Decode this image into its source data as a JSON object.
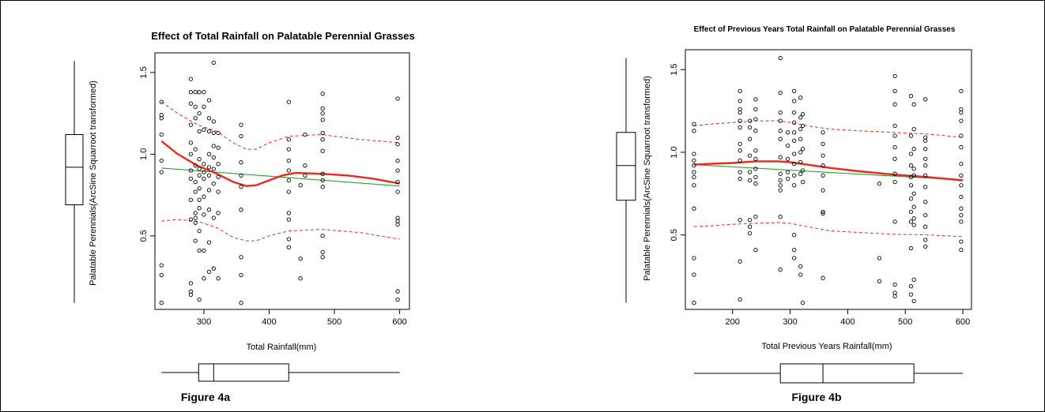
{
  "chart_data": [
    {
      "type": "scatter",
      "title": "Effect of Total Rainfall on Palatable Perennial Grasses",
      "xlabel": "Total Rainfall(mm)",
      "ylabel": "Palatable Perennials(ArcSine Squarroot transformed)",
      "caption": "Figure 4a",
      "xlim": [
        225,
        615
      ],
      "ylim": [
        0.05,
        1.62
      ],
      "xticks": [
        300,
        400,
        500,
        600
      ],
      "yticks": [
        0.5,
        1.0,
        1.5
      ],
      "grid": false,
      "points": [
        {
          "x": 235,
          "y": [
            0.09,
            0.26,
            0.32,
            0.89,
            0.96,
            1.12,
            1.22,
            1.24,
            1.32
          ]
        },
        {
          "x": 280,
          "y": [
            0.14,
            0.16,
            0.21,
            0.6,
            0.72,
            0.85,
            0.9,
            1.0,
            1.07,
            1.18,
            1.31,
            1.38,
            1.46
          ]
        },
        {
          "x": 287,
          "y": [
            0.47,
            0.58,
            0.61,
            0.64,
            0.77,
            0.83,
            0.93,
            1.03,
            1.22,
            1.29,
            1.38
          ]
        },
        {
          "x": 293,
          "y": [
            0.11,
            0.41,
            0.53,
            0.67,
            0.72,
            0.79,
            0.87,
            0.91,
            0.97,
            1.14,
            1.25,
            1.38
          ]
        },
        {
          "x": 300,
          "y": [
            0.24,
            0.41,
            0.63,
            0.74,
            0.85,
            0.89,
            0.94,
            1.15,
            1.29,
            1.38
          ]
        },
        {
          "x": 308,
          "y": [
            0.28,
            0.46,
            0.66,
            0.78,
            0.87,
            0.92,
            1.0,
            1.14,
            1.22,
            1.33
          ]
        },
        {
          "x": 315,
          "y": [
            0.3,
            0.61,
            0.82,
            0.91,
            0.98,
            1.05,
            1.13,
            1.2,
            1.56
          ]
        },
        {
          "x": 322,
          "y": [
            0.24,
            0.64,
            0.77,
            0.86,
            0.94,
            1.04,
            1.13
          ]
        },
        {
          "x": 357,
          "y": [
            0.09,
            0.26,
            0.37,
            0.66,
            0.8,
            0.87,
            0.95,
            1.11,
            1.18
          ]
        },
        {
          "x": 430,
          "y": [
            0.43,
            0.48,
            0.6,
            0.64,
            0.77,
            0.84,
            0.9,
            0.96,
            1.03,
            1.09,
            1.32
          ]
        },
        {
          "x": 448,
          "y": [
            0.24,
            0.36,
            0.81
          ]
        },
        {
          "x": 455,
          "y": [
            0.87,
            0.93,
            1.12
          ]
        },
        {
          "x": 482,
          "y": [
            0.37,
            0.4,
            0.5,
            0.8,
            0.84,
            0.88,
            1.02,
            1.09,
            1.13,
            1.21,
            1.25,
            1.28,
            1.37
          ]
        },
        {
          "x": 597,
          "y": [
            0.11,
            0.16,
            0.57,
            0.59,
            0.61,
            0.77,
            0.83,
            0.9,
            0.96,
            1.06,
            1.1,
            1.34
          ]
        }
      ],
      "lines": [
        {
          "role": "linear-fit",
          "color": "#2ca02c",
          "style": "solid",
          "x": [
            235,
            600
          ],
          "y": [
            0.915,
            0.805
          ]
        },
        {
          "role": "smooth",
          "color": "#e8291c",
          "style": "solid",
          "x": [
            235,
            260,
            290,
            320,
            345,
            365,
            380,
            400,
            420,
            440,
            480,
            520,
            560,
            600
          ],
          "y": [
            1.08,
            1.0,
            0.93,
            0.88,
            0.83,
            0.805,
            0.81,
            0.84,
            0.87,
            0.885,
            0.88,
            0.87,
            0.85,
            0.82
          ]
        },
        {
          "role": "upper-band",
          "color": "#e8291c",
          "style": "dashed",
          "x": [
            235,
            260,
            290,
            320,
            345,
            365,
            380,
            400,
            430,
            480,
            540,
            600
          ],
          "y": [
            1.32,
            1.25,
            1.18,
            1.14,
            1.07,
            1.03,
            1.03,
            1.07,
            1.11,
            1.12,
            1.09,
            1.07
          ]
        },
        {
          "role": "lower-band",
          "color": "#e8291c",
          "style": "dashed",
          "x": [
            235,
            260,
            290,
            320,
            345,
            365,
            380,
            400,
            430,
            480,
            540,
            600
          ],
          "y": [
            0.59,
            0.6,
            0.59,
            0.55,
            0.49,
            0.47,
            0.47,
            0.5,
            0.53,
            0.54,
            0.52,
            0.48
          ]
        }
      ],
      "x_boxplot": {
        "min": 235,
        "q1": 292,
        "median": 315,
        "q3": 430,
        "max": 600
      },
      "y_boxplot": {
        "min": 0.09,
        "q1": 0.69,
        "median": 0.92,
        "q3": 1.12,
        "max": 1.57
      }
    },
    {
      "type": "scatter",
      "title": "Effect of Previous Years Total Rainfall on Palatable Perennial Grasses",
      "xlabel": "Total Previous Years Rainfall(mm)",
      "ylabel": "Palatable Perennials(ArcSine Squarroot transformed)",
      "caption": "Figure 4b",
      "xlim": [
        118,
        615
      ],
      "ylim": [
        0.05,
        1.62
      ],
      "xticks": [
        200,
        300,
        400,
        500,
        600
      ],
      "yticks": [
        0.5,
        1.0,
        1.5
      ],
      "grid": false,
      "points": [
        {
          "x": 133,
          "y": [
            0.09,
            0.26,
            0.36,
            0.66,
            0.8,
            0.85,
            0.88,
            0.92,
            0.95,
            0.99,
            1.13,
            1.17
          ]
        },
        {
          "x": 213,
          "y": [
            0.11,
            0.34,
            0.59,
            0.84,
            0.88,
            0.95,
            1.01,
            1.05,
            1.15,
            1.19,
            1.24,
            1.26,
            1.31,
            1.37
          ]
        },
        {
          "x": 230,
          "y": [
            0.51,
            0.55,
            0.59,
            0.83,
            0.88,
            0.98,
            1.08,
            1.15,
            1.19
          ]
        },
        {
          "x": 240,
          "y": [
            0.41,
            0.61,
            0.81,
            0.85,
            0.9,
            0.96,
            1.01,
            1.13,
            1.2,
            1.26,
            1.32
          ]
        },
        {
          "x": 283,
          "y": [
            0.29,
            0.61,
            0.77,
            0.8,
            0.83,
            0.87,
            0.97,
            1.08,
            1.13,
            1.19,
            1.24,
            1.36,
            1.57
          ]
        },
        {
          "x": 296,
          "y": [
            0.84,
            0.88,
            0.96,
            1.04,
            1.12
          ]
        },
        {
          "x": 307,
          "y": [
            0.36,
            0.41,
            0.5,
            0.8,
            0.86,
            0.93,
            0.99,
            1.07,
            1.12,
            1.18,
            1.24,
            1.31,
            1.37
          ]
        },
        {
          "x": 318,
          "y": [
            0.26,
            0.31,
            0.87,
            0.94,
            1.0,
            1.08,
            1.14,
            1.21,
            1.33
          ]
        },
        {
          "x": 322,
          "y": [
            0.09,
            0.82,
            0.89,
            1.02,
            1.16,
            1.23
          ]
        },
        {
          "x": 357,
          "y": [
            0.24,
            0.63,
            0.64,
            0.77,
            0.86,
            0.92,
            0.98,
            1.05,
            1.12
          ]
        },
        {
          "x": 455,
          "y": [
            0.22,
            0.36,
            0.81
          ]
        },
        {
          "x": 482,
          "y": [
            0.13,
            0.15,
            0.2,
            0.58,
            0.82,
            0.87,
            0.96,
            1.03,
            1.1,
            1.16,
            1.29,
            1.37,
            1.46
          ]
        },
        {
          "x": 510,
          "y": [
            0.14,
            0.19,
            0.42,
            0.58,
            0.64,
            0.72,
            0.8,
            0.85,
            0.92,
            0.99,
            1.1,
            1.34
          ]
        },
        {
          "x": 515,
          "y": [
            0.1,
            0.23,
            0.56,
            0.6,
            0.67,
            0.75,
            0.86,
            0.9,
            1.02,
            1.14,
            1.29
          ]
        },
        {
          "x": 535,
          "y": [
            0.43,
            0.47,
            0.55,
            0.62,
            0.7,
            0.79,
            0.86,
            0.92,
            0.96,
            1.02,
            1.07,
            1.09,
            1.32
          ]
        },
        {
          "x": 597,
          "y": [
            0.41,
            0.46,
            0.58,
            0.62,
            0.66,
            0.73,
            0.8,
            0.86,
            0.93,
            1.03,
            1.1,
            1.19,
            1.24,
            1.26,
            1.37
          ]
        }
      ],
      "lines": [
        {
          "role": "linear-fit",
          "color": "#2ca02c",
          "style": "solid",
          "x": [
            133,
            600
          ],
          "y": [
            0.925,
            0.832
          ]
        },
        {
          "role": "smooth",
          "color": "#e8291c",
          "style": "solid",
          "x": [
            133,
            160,
            200,
            240,
            280,
            300,
            330,
            370,
            420,
            480,
            540,
            600
          ],
          "y": [
            0.925,
            0.93,
            0.935,
            0.945,
            0.945,
            0.94,
            0.925,
            0.905,
            0.885,
            0.865,
            0.85,
            0.83
          ]
        },
        {
          "role": "upper-band",
          "color": "#e8291c",
          "style": "dashed",
          "x": [
            133,
            160,
            200,
            240,
            280,
            300,
            330,
            370,
            420,
            480,
            540,
            600
          ],
          "y": [
            1.16,
            1.17,
            1.18,
            1.19,
            1.19,
            1.18,
            1.16,
            1.14,
            1.13,
            1.12,
            1.11,
            1.09
          ]
        },
        {
          "role": "lower-band",
          "color": "#e8291c",
          "style": "dashed",
          "x": [
            133,
            160,
            200,
            240,
            280,
            300,
            330,
            370,
            420,
            480,
            540,
            600
          ],
          "y": [
            0.55,
            0.555,
            0.565,
            0.57,
            0.575,
            0.57,
            0.55,
            0.525,
            0.515,
            0.505,
            0.5,
            0.49
          ]
        }
      ],
      "x_boxplot": {
        "min": 133,
        "q1": 283,
        "median": 357,
        "q3": 515,
        "max": 600
      },
      "y_boxplot": {
        "min": 0.09,
        "q1": 0.71,
        "median": 0.92,
        "q3": 1.12,
        "max": 1.57
      }
    }
  ]
}
